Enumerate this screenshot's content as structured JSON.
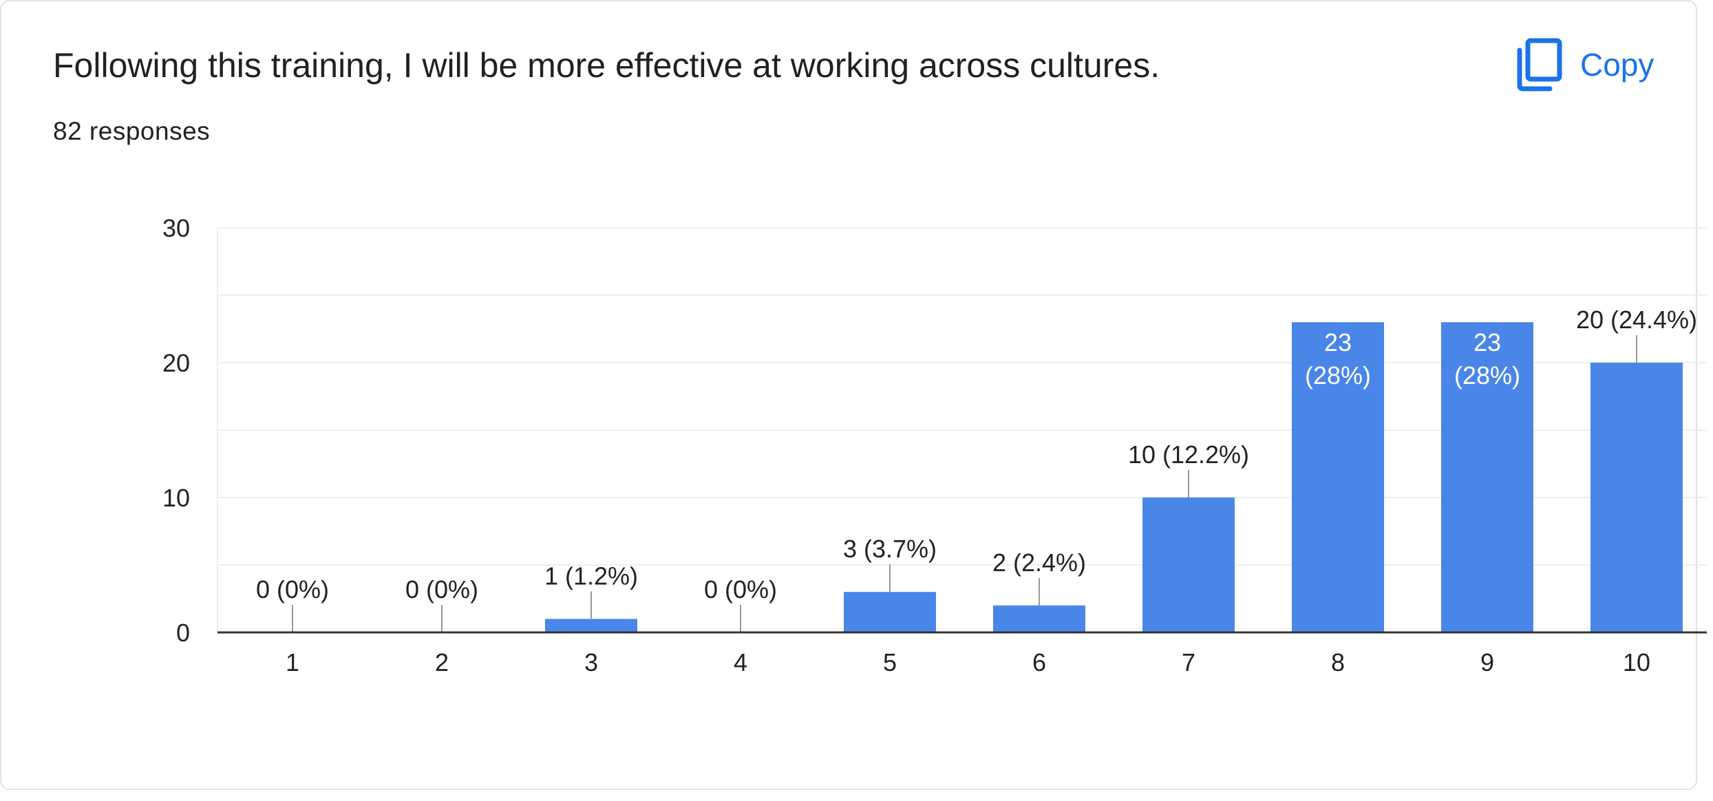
{
  "card": {
    "title": "Following this training, I will be more effective at working across cultures.",
    "responses": "82 responses",
    "copy_label": "Copy",
    "copy_icon": "copy-icon"
  },
  "colors": {
    "bar": "#4a86e8",
    "accent": "#1a73e8",
    "grid": "#eeeeee",
    "axis": "#333333",
    "leader": "#999999"
  },
  "chart_data": {
    "type": "bar",
    "categories": [
      "1",
      "2",
      "3",
      "4",
      "5",
      "6",
      "7",
      "8",
      "9",
      "10"
    ],
    "values": [
      0,
      0,
      1,
      0,
      3,
      2,
      10,
      23,
      23,
      20
    ],
    "labels": [
      "0 (0%)",
      "0 (0%)",
      "1 (1.2%)",
      "0 (0%)",
      "3 (3.7%)",
      "2 (2.4%)",
      "10 (12.2%)",
      "23\n(28%)",
      "23\n(28%)",
      "20 (24.4%)"
    ],
    "label_inside": [
      false,
      false,
      false,
      false,
      false,
      false,
      false,
      true,
      true,
      false
    ],
    "title": "Following this training, I will be more effective at working across cultures.",
    "xlabel": "",
    "ylabel": "",
    "ylim": [
      0,
      30
    ],
    "yticks": [
      0,
      10,
      20,
      30
    ],
    "grid": true,
    "legend": "none"
  }
}
